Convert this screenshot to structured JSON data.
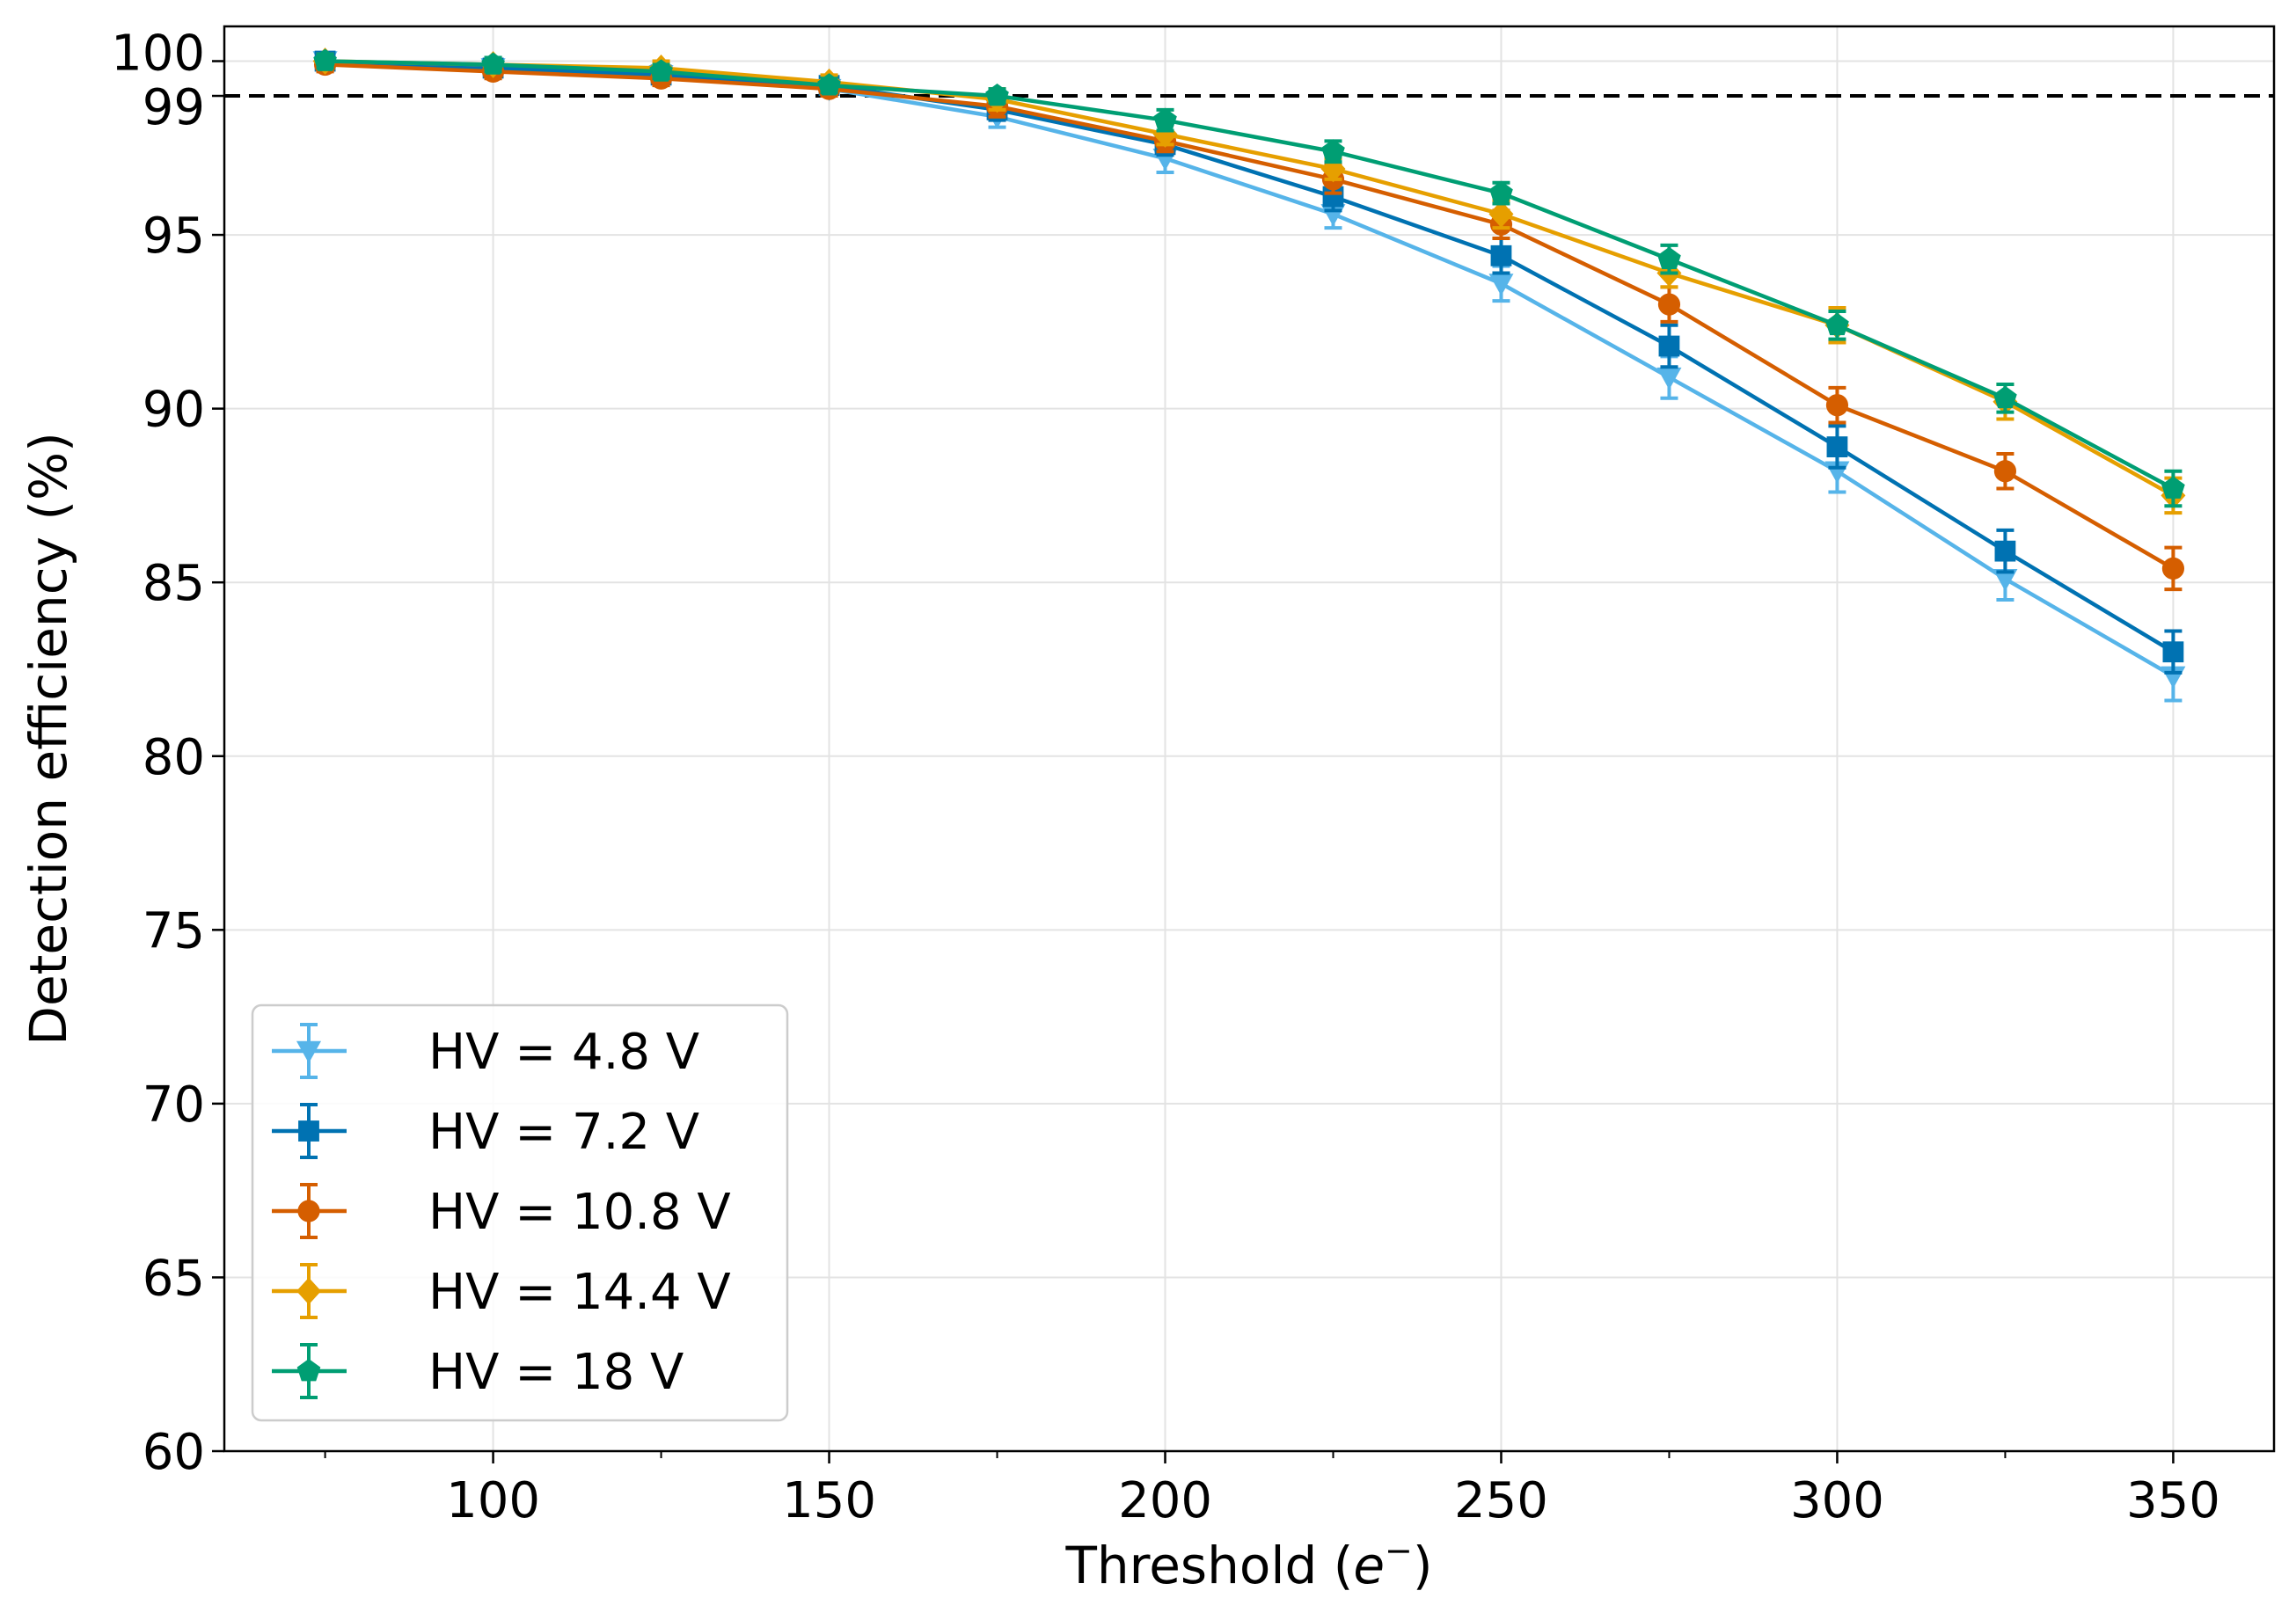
{
  "chart_data": {
    "type": "line",
    "title": "",
    "xlabel": "Threshold (",
    "xlabel_symbol": "e",
    "xlabel_sup": "−",
    "xlabel_end": ")",
    "ylabel": "Detection efficiency (%)",
    "xlim": [
      60,
      365
    ],
    "ylim": [
      60,
      101
    ],
    "x_ticks": [
      100,
      150,
      200,
      250,
      300,
      350
    ],
    "x_tick_labels": [
      "100",
      "150",
      "200",
      "250",
      "300",
      "350"
    ],
    "x_minor_ticks": [
      75,
      125,
      175,
      225,
      275,
      325
    ],
    "y_ticks": [
      60,
      65,
      70,
      75,
      80,
      85,
      90,
      95,
      99,
      100
    ],
    "y_tick_labels": [
      "60",
      "65",
      "70",
      "75",
      "80",
      "85",
      "90",
      "95",
      "99",
      "100"
    ],
    "grid": true,
    "reference_line": {
      "y": 99,
      "style": "dashed",
      "color": "#000000"
    },
    "legend_position": "lower-left",
    "x": [
      75,
      100,
      125,
      150,
      175,
      200,
      225,
      250,
      275,
      300,
      325,
      350
    ],
    "series": [
      {
        "name": "HV = 4.8 V",
        "color": "#56B4E9",
        "marker": "triangle-down",
        "values": [
          100.0,
          99.8,
          99.6,
          99.2,
          98.4,
          97.2,
          95.6,
          93.6,
          90.9,
          88.2,
          85.1,
          82.3
        ],
        "errors": [
          0.2,
          0.2,
          0.2,
          0.2,
          0.3,
          0.4,
          0.4,
          0.5,
          0.6,
          0.6,
          0.6,
          0.7
        ]
      },
      {
        "name": "HV = 7.2 V",
        "color": "#0072B2",
        "marker": "square",
        "values": [
          100.0,
          99.8,
          99.6,
          99.3,
          98.6,
          97.6,
          96.1,
          94.4,
          91.8,
          88.9,
          85.9,
          83.0
        ],
        "errors": [
          0.2,
          0.2,
          0.2,
          0.2,
          0.3,
          0.3,
          0.4,
          0.5,
          0.6,
          0.6,
          0.6,
          0.6
        ]
      },
      {
        "name": "HV = 10.8 V",
        "color": "#D55E00",
        "marker": "circle",
        "values": [
          99.9,
          99.7,
          99.5,
          99.2,
          98.7,
          97.7,
          96.6,
          95.3,
          93.0,
          90.1,
          88.2,
          85.4
        ],
        "errors": [
          0.2,
          0.2,
          0.2,
          0.2,
          0.3,
          0.3,
          0.4,
          0.4,
          0.5,
          0.5,
          0.5,
          0.6
        ]
      },
      {
        "name": "HV = 14.4 V",
        "color": "#E69F00",
        "marker": "diamond",
        "values": [
          100.0,
          99.9,
          99.8,
          99.4,
          98.9,
          97.9,
          96.9,
          95.6,
          93.9,
          92.4,
          90.2,
          87.5
        ],
        "errors": [
          0.2,
          0.2,
          0.2,
          0.2,
          0.3,
          0.3,
          0.3,
          0.4,
          0.4,
          0.5,
          0.5,
          0.5
        ]
      },
      {
        "name": "HV = 18 V",
        "color": "#009E73",
        "marker": "pentagon",
        "values": [
          100.0,
          99.9,
          99.7,
          99.3,
          99.0,
          98.3,
          97.4,
          96.2,
          94.3,
          92.4,
          90.3,
          87.7
        ],
        "errors": [
          0.2,
          0.2,
          0.2,
          0.2,
          0.2,
          0.3,
          0.3,
          0.3,
          0.4,
          0.4,
          0.4,
          0.5
        ]
      }
    ]
  }
}
